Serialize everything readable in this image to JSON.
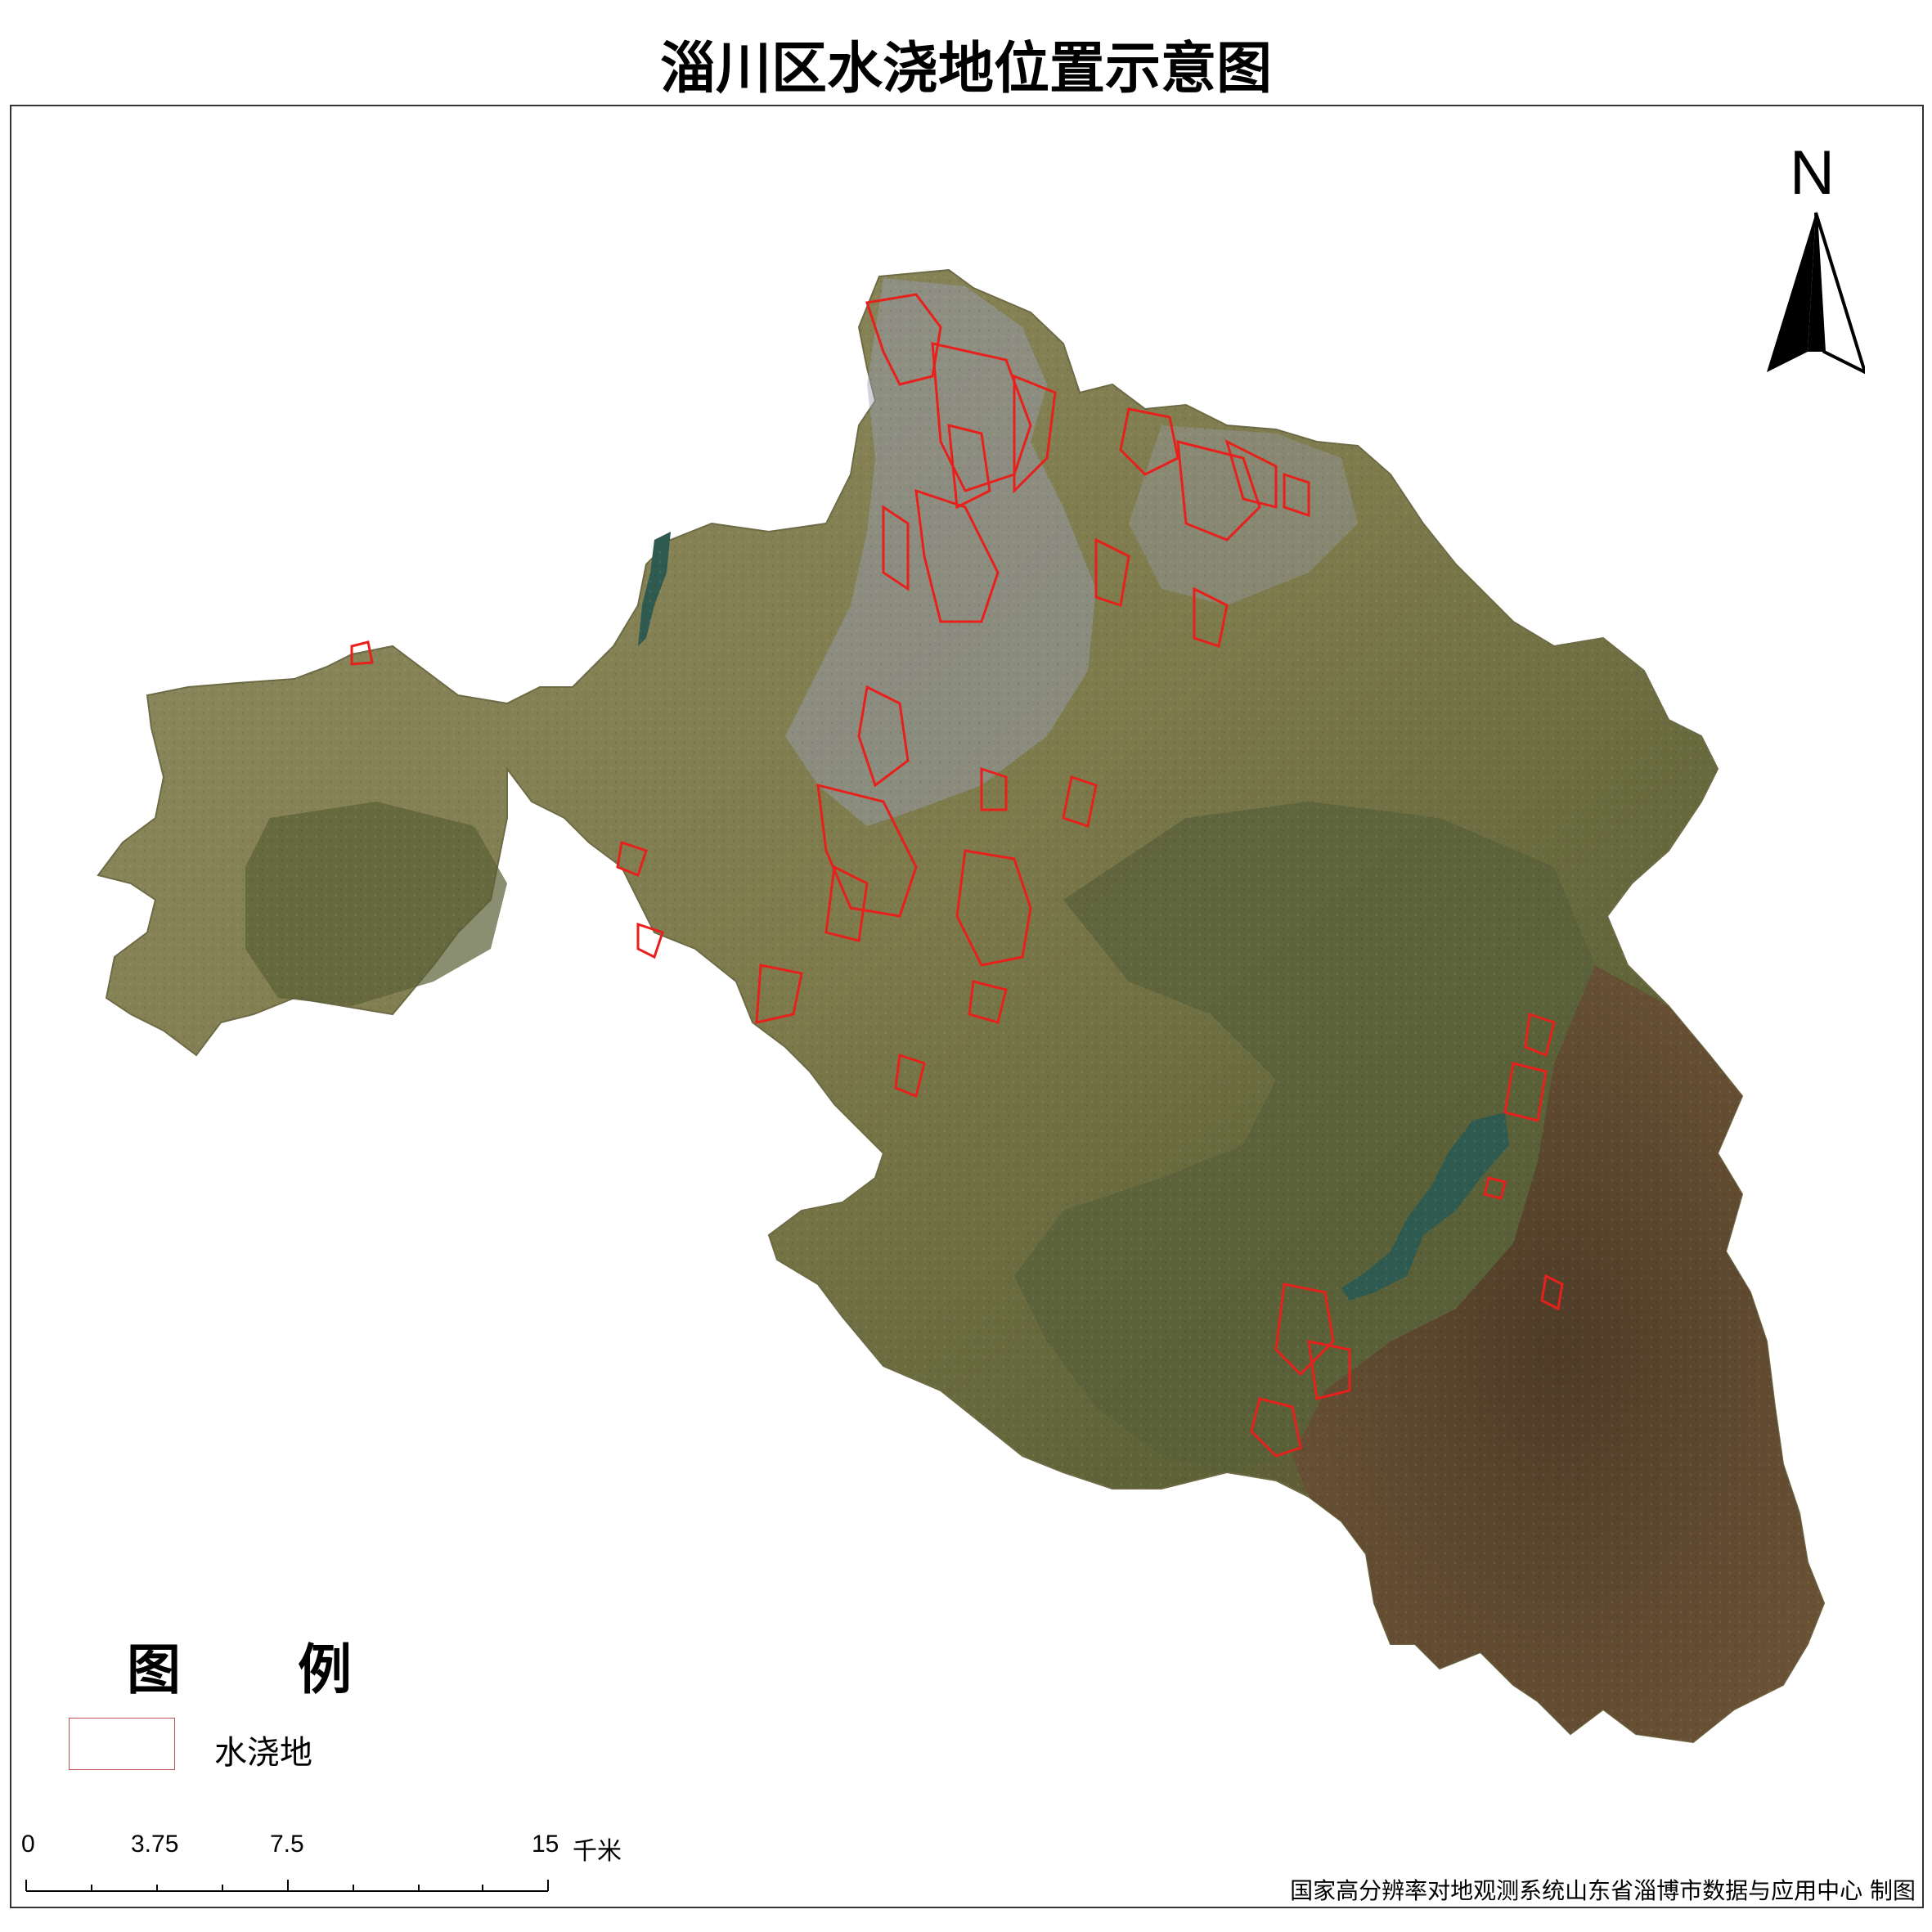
{
  "title": "淄川区水浇地位置示意图",
  "north_arrow": {
    "label": "N"
  },
  "legend": {
    "title": "图  例",
    "items": [
      {
        "label": "水浇地",
        "color": "#c0504d"
      }
    ]
  },
  "scale_bar": {
    "labels": [
      "0",
      "3.75",
      "7.5",
      "15"
    ],
    "unit": "千米"
  },
  "credit": "国家高分辨率对地观测系统山东省淄博市数据与应用中心  制图",
  "colors": {
    "irrigated_outline": "#e8201c",
    "terrain_plain": "#8d8a5a",
    "terrain_mountain_green": "#5c6236",
    "terrain_mountain_brown": "#5e4630",
    "urban": "#9aa0b8",
    "reservoir": "#2f5a50"
  }
}
